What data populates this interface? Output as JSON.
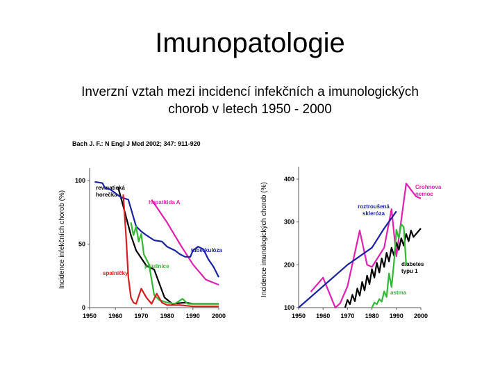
{
  "slide": {
    "title": "Imunopatologie",
    "subtitle_line1": "Inverzní vztah mezi incidencí infekčních a imunologických",
    "subtitle_line2": "chorob v letech 1950 - 2000",
    "citation": "Bach J. F.: N Engl J Med 2002; 347: 911-920"
  },
  "chart_data": [
    {
      "type": "line",
      "ylabel": "Incidence infekčních chorob (%)",
      "xlabel": "",
      "xlim": [
        1950,
        2000
      ],
      "ylim": [
        0,
        100
      ],
      "x_ticks": [
        1950,
        1960,
        1970,
        1980,
        1990,
        2000
      ],
      "y_ticks": [
        0,
        50,
        100
      ],
      "series": [
        {
          "name": "revmatická horečka",
          "label_lines": [
            "revmatická",
            "horečka"
          ],
          "color": "#000000",
          "x": [
            1961,
            1963,
            1966,
            1968,
            1972,
            1975,
            1979,
            1982,
            1987,
            1990,
            1993,
            1996,
            2000
          ],
          "y": [
            95,
            80,
            57,
            45,
            33,
            30,
            8,
            3,
            4,
            3,
            3,
            3,
            3
          ]
        },
        {
          "name": "hepatitida A",
          "label_lines": [
            "hepatitida A"
          ],
          "color": "#e020b0",
          "x": [
            1974,
            1980,
            1985,
            1990,
            1995,
            2000
          ],
          "y": [
            85,
            67,
            50,
            34,
            22,
            18
          ]
        },
        {
          "name": "tuberkulóza",
          "label_lines": [
            "tuberkulóza"
          ],
          "color": "#1a22a0",
          "x": [
            1952,
            1955,
            1956,
            1958,
            1960,
            1962,
            1965,
            1968,
            1970,
            1972,
            1975,
            1978,
            1980,
            1983,
            1985,
            1987,
            1989,
            1990,
            1992,
            1994,
            1996,
            1998,
            2000
          ],
          "y": [
            99,
            98,
            94,
            93,
            90,
            87,
            85,
            64,
            60,
            57,
            53,
            52,
            48,
            45,
            42,
            40,
            40,
            45,
            48,
            46,
            38,
            32,
            24
          ]
        },
        {
          "name": "příušnice",
          "label_lines": [
            "příušnice"
          ],
          "color": "#32b832",
          "x": [
            1966,
            1967,
            1968,
            1969,
            1970,
            1971,
            1973,
            1975,
            1977,
            1980,
            1983,
            1986,
            1988,
            1990,
            1995,
            2000
          ],
          "y": [
            67,
            57,
            64,
            52,
            58,
            42,
            34,
            10,
            6,
            4,
            3,
            7,
            3,
            3,
            3,
            3
          ]
        },
        {
          "name": "spalničky",
          "label_lines": [
            "spalničky"
          ],
          "color": "#d42020",
          "x": [
            1963,
            1964,
            1965,
            1966,
            1967,
            1968,
            1970,
            1972,
            1974,
            1976,
            1978,
            1980,
            1985,
            1990,
            1995,
            2000
          ],
          "y": [
            89,
            60,
            24,
            8,
            4,
            3,
            15,
            8,
            3,
            11,
            4,
            2,
            2,
            1,
            1,
            1
          ]
        }
      ]
    },
    {
      "type": "line",
      "ylabel": "Incidence imunologických chorob (%)",
      "xlabel": "",
      "xlim": [
        1950,
        2000
      ],
      "ylim": [
        100,
        400
      ],
      "x_ticks": [
        1950,
        1960,
        1970,
        1980,
        1990,
        2000
      ],
      "y_ticks": [
        100,
        200,
        300,
        400
      ],
      "series": [
        {
          "name": "Crohnova nemoc",
          "label_lines": [
            "Crohnova",
            "nemoc"
          ],
          "color": "#e020b0",
          "x": [
            1955,
            1960,
            1965,
            1967,
            1970,
            1975,
            1978,
            1980,
            1985,
            1988,
            1990,
            1994,
            1998,
            2000
          ],
          "y": [
            137,
            170,
            100,
            110,
            150,
            280,
            200,
            195,
            240,
            330,
            220,
            390,
            360,
            355
          ]
        },
        {
          "name": "roztroušená skleróza",
          "label_lines": [
            "roztroušená",
            "skleróza"
          ],
          "color": "#1a22a0",
          "x": [
            1950,
            1970,
            1980,
            1985,
            1990
          ],
          "y": [
            100,
            200,
            240,
            285,
            325
          ]
        },
        {
          "name": "diabetes typu 1",
          "label_lines": [
            "diabetes",
            "typu 1"
          ],
          "color": "#000000",
          "x": [
            1969,
            1970,
            1971,
            1972,
            1973,
            1974,
            1975,
            1976,
            1977,
            1978,
            1979,
            1980,
            1981,
            1982,
            1983,
            1984,
            1985,
            1986,
            1987,
            1988,
            1989,
            1990,
            1991,
            1992,
            1993,
            1994,
            1995,
            1996,
            1997,
            2000
          ],
          "y": [
            100,
            118,
            108,
            130,
            115,
            145,
            128,
            160,
            140,
            175,
            155,
            190,
            170,
            205,
            182,
            215,
            195,
            228,
            208,
            240,
            222,
            252,
            235,
            262,
            245,
            272,
            255,
            280,
            265,
            285
          ]
        },
        {
          "name": "astma",
          "label_lines": [
            "astma"
          ],
          "color": "#32b832",
          "x": [
            1980,
            1981,
            1982,
            1983,
            1984,
            1985,
            1986,
            1987,
            1988,
            1989,
            1990,
            1991,
            1992,
            1993,
            1994
          ],
          "y": [
            100,
            112,
            108,
            120,
            114,
            138,
            125,
            180,
            148,
            205,
            282,
            262,
            295,
            288,
            200
          ]
        }
      ]
    }
  ]
}
